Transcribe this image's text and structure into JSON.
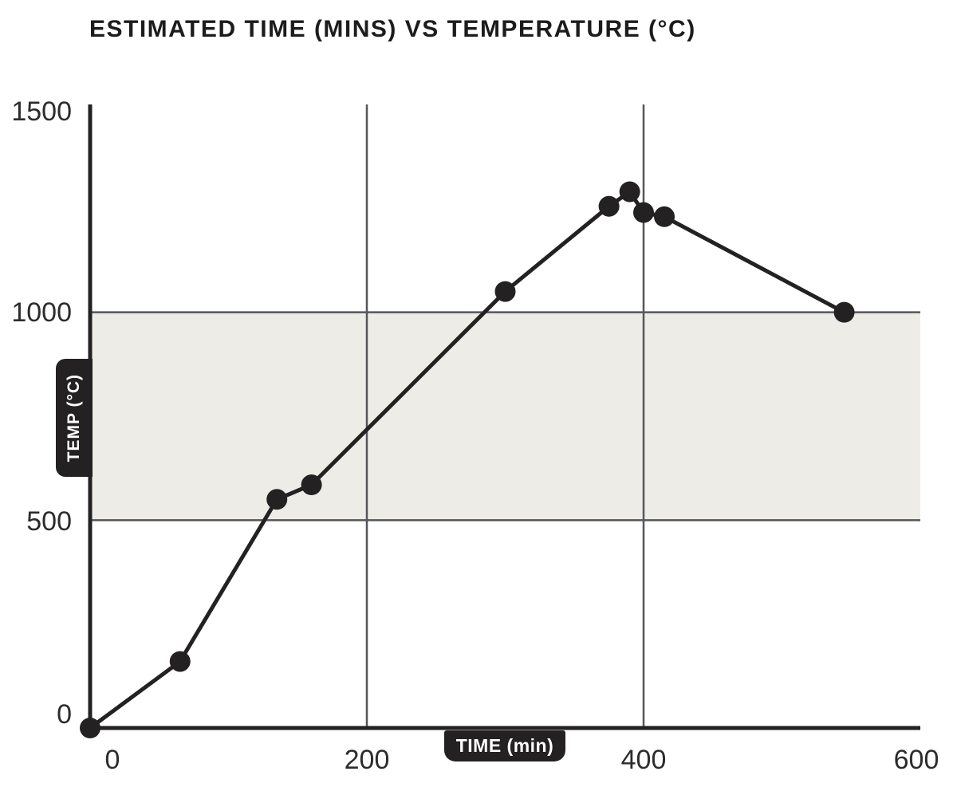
{
  "title": "ESTIMATED TIME (MINS) VS TEMPERATURE (°C)",
  "chart_data": {
    "type": "line",
    "title": "ESTIMATED TIME (MINS) VS TEMPERATURE (°C)",
    "xlabel": "TIME (min)",
    "ylabel": "TEMP (°C)",
    "x": [
      0,
      65,
      135,
      160,
      300,
      375,
      390,
      400,
      415,
      545
    ],
    "y": [
      0,
      160,
      550,
      585,
      1050,
      1255,
      1290,
      1240,
      1230,
      1000
    ],
    "xlim": [
      0,
      600
    ],
    "ylim": [
      0,
      1500
    ],
    "x_ticks": [
      0,
      200,
      400,
      600
    ],
    "y_ticks": [
      0,
      500,
      1000,
      1500
    ],
    "grid": {
      "vertical_at": [
        200,
        400
      ],
      "horizontal_at": [
        500,
        1000
      ]
    },
    "band": {
      "axis": "y",
      "from": 500,
      "to": 1000,
      "color": "#edece7"
    },
    "legend": null,
    "colors": {
      "line": "#242122",
      "marker": "#242122",
      "axis": "#242122",
      "gridline": "#55565a",
      "tick_text": "#2d2b2c",
      "label_chip_bg": "#242122",
      "label_chip_text": "#ffffff",
      "background": "#ffffff"
    },
    "marker": "circle"
  }
}
